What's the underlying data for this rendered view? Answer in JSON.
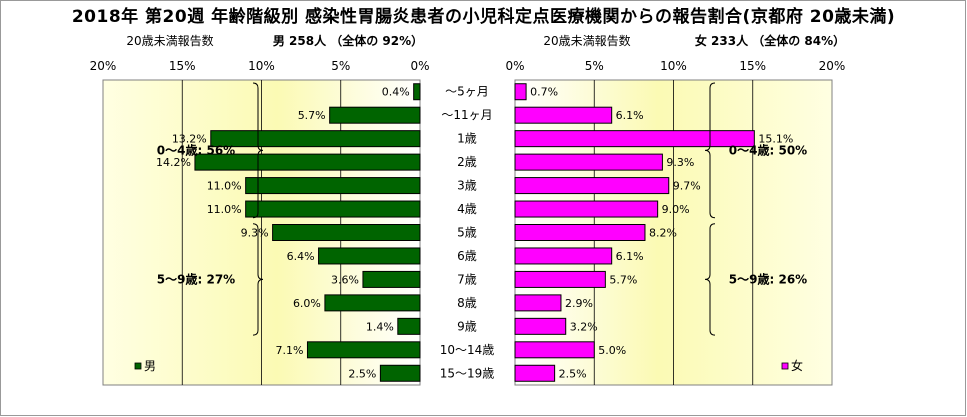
{
  "title": "2018年 第20週 年齢階級別 感染性胃腸炎患者の小児科定点医療機関からの報告割合(京都府 20歳未満)",
  "chart_data": [
    {
      "type": "bar",
      "orientation": "horizontal",
      "direction": "right-to-left",
      "header_left": "20歳未満報告数",
      "header_right": "男  258人 （全体の  92%）",
      "legend": "男",
      "legend_position": "bottom-left",
      "color": "#006400",
      "xlim": [
        0,
        20
      ],
      "ticks": [
        "20%",
        "15%",
        "10%",
        "5%",
        "0%"
      ],
      "gridlines": true,
      "categories": [
        "～5ヶ月",
        "～11ヶ月",
        "1歳",
        "2歳",
        "3歳",
        "4歳",
        "5歳",
        "6歳",
        "7歳",
        "8歳",
        "9歳",
        "10～14歳",
        "15～19歳"
      ],
      "values": [
        0.4,
        5.7,
        13.2,
        14.2,
        11.0,
        11.0,
        9.3,
        6.4,
        3.6,
        6.0,
        1.4,
        7.1,
        2.5
      ],
      "value_labels": [
        "0.4%",
        "5.7%",
        "13.2%",
        "14.2%",
        "11.0%",
        "11.0%",
        "9.3%",
        "6.4%",
        "3.6%",
        "6.0%",
        "1.4%",
        "7.1%",
        "2.5%"
      ],
      "annotations": [
        {
          "text": "0～4歳: 56%",
          "from_row": 0,
          "to_row": 5
        },
        {
          "text": "5～9歳: 27%",
          "from_row": 6,
          "to_row": 10
        }
      ]
    },
    {
      "type": "bar",
      "orientation": "horizontal",
      "direction": "left-to-right",
      "header_left": "20歳未満報告数",
      "header_right": "女  233人 （全体の  84%）",
      "legend": "女",
      "legend_position": "bottom-right",
      "color": "#ff00ff",
      "xlim": [
        0,
        20
      ],
      "ticks": [
        "0%",
        "5%",
        "10%",
        "15%",
        "20%"
      ],
      "gridlines": true,
      "categories": [
        "～5ヶ月",
        "～11ヶ月",
        "1歳",
        "2歳",
        "3歳",
        "4歳",
        "5歳",
        "6歳",
        "7歳",
        "8歳",
        "9歳",
        "10～14歳",
        "15～19歳"
      ],
      "values": [
        0.7,
        6.1,
        15.1,
        9.3,
        9.7,
        9.0,
        8.2,
        6.1,
        5.7,
        2.9,
        3.2,
        5.0,
        2.5
      ],
      "value_labels": [
        "0.7%",
        "6.1%",
        "15.1%",
        "9.3%",
        "9.7%",
        "9.0%",
        "8.2%",
        "6.1%",
        "5.7%",
        "2.9%",
        "3.2%",
        "5.0%",
        "2.5%"
      ],
      "annotations": [
        {
          "text": "0～4歳: 50%",
          "from_row": 0,
          "to_row": 5
        },
        {
          "text": "5～9歳: 26%",
          "from_row": 6,
          "to_row": 10
        }
      ]
    }
  ]
}
